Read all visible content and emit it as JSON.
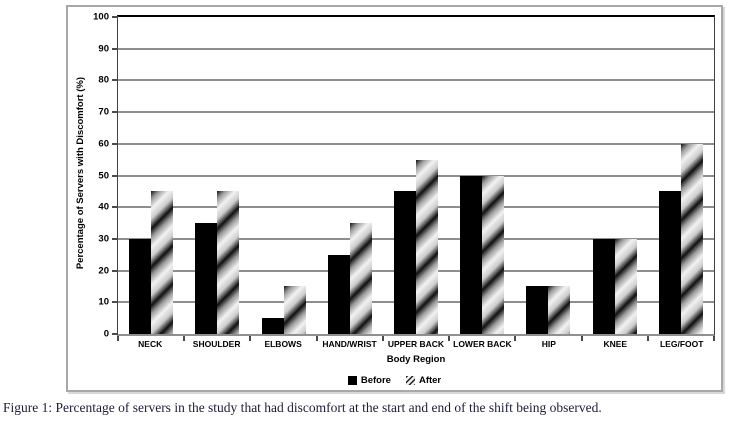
{
  "figure": {
    "caption": "Figure 1: Percentage of servers in the study that had discomfort at the start and end of the shift being observed."
  },
  "chart_data": {
    "type": "bar",
    "title": "",
    "categories": [
      "NECK",
      "SHOULDER",
      "ELBOWS",
      "HAND/WRIST",
      "UPPER BACK",
      "LOWER BACK",
      "HIP",
      "KNEE",
      "LEG/FOOT"
    ],
    "series": [
      {
        "name": "Before",
        "values": [
          30,
          35,
          5,
          25,
          45,
          50,
          15,
          30,
          45
        ],
        "style": "solid-black"
      },
      {
        "name": "After",
        "values": [
          45,
          45,
          15,
          35,
          55,
          50,
          15,
          30,
          60
        ],
        "style": "diagonal-gradient-hatch"
      }
    ],
    "xlabel": "Body Region",
    "ylabel": "Percentage of Servers with Discomfort (%)",
    "ylim": [
      0,
      100
    ],
    "yticks": [
      0,
      10,
      20,
      30,
      40,
      50,
      60,
      70,
      80,
      90,
      100
    ],
    "grid": true,
    "legend_position": "bottom-center",
    "colors": {
      "before_bar": "#000000",
      "after_hatch_dark": "#0f0f0f",
      "after_hatch_light": "#f2f2f2",
      "gridline": "#8e8e8e",
      "top_border_line": "#000000",
      "chart_box_border": "#a8a8a8",
      "caption_text": "#1d1d38"
    }
  }
}
